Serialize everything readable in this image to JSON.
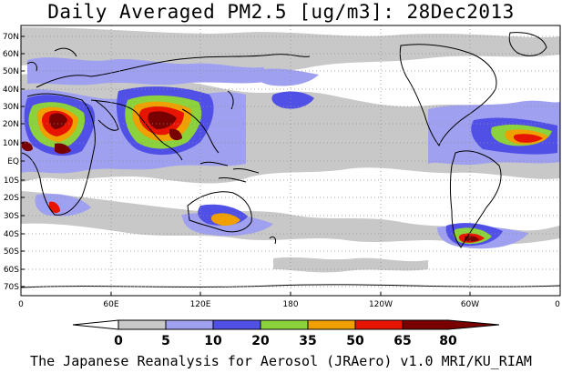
{
  "title": "Daily Averaged PM2.5 [ug/m3]: 28Dec2013",
  "footer": "The Japanese Reanalysis for Aerosol (JRAero) v1.0 MRI/KU_RIAM",
  "lat_labels": [
    "70N",
    "60N",
    "50N",
    "40N",
    "30N",
    "20N",
    "10N",
    "EQ",
    "10S",
    "20S",
    "30S",
    "40S",
    "50S",
    "60S",
    "70S"
  ],
  "lon_labels": [
    "0",
    "60E",
    "120E",
    "180",
    "120W",
    "60W",
    "0"
  ],
  "colorbar": {
    "levels": [
      "0",
      "5",
      "10",
      "20",
      "35",
      "50",
      "65",
      "80"
    ],
    "colors": [
      "#ffffff",
      "#c8c8c8",
      "#a0a0f0",
      "#5050e6",
      "#8cd23c",
      "#f0a000",
      "#e61400",
      "#780000"
    ]
  }
}
